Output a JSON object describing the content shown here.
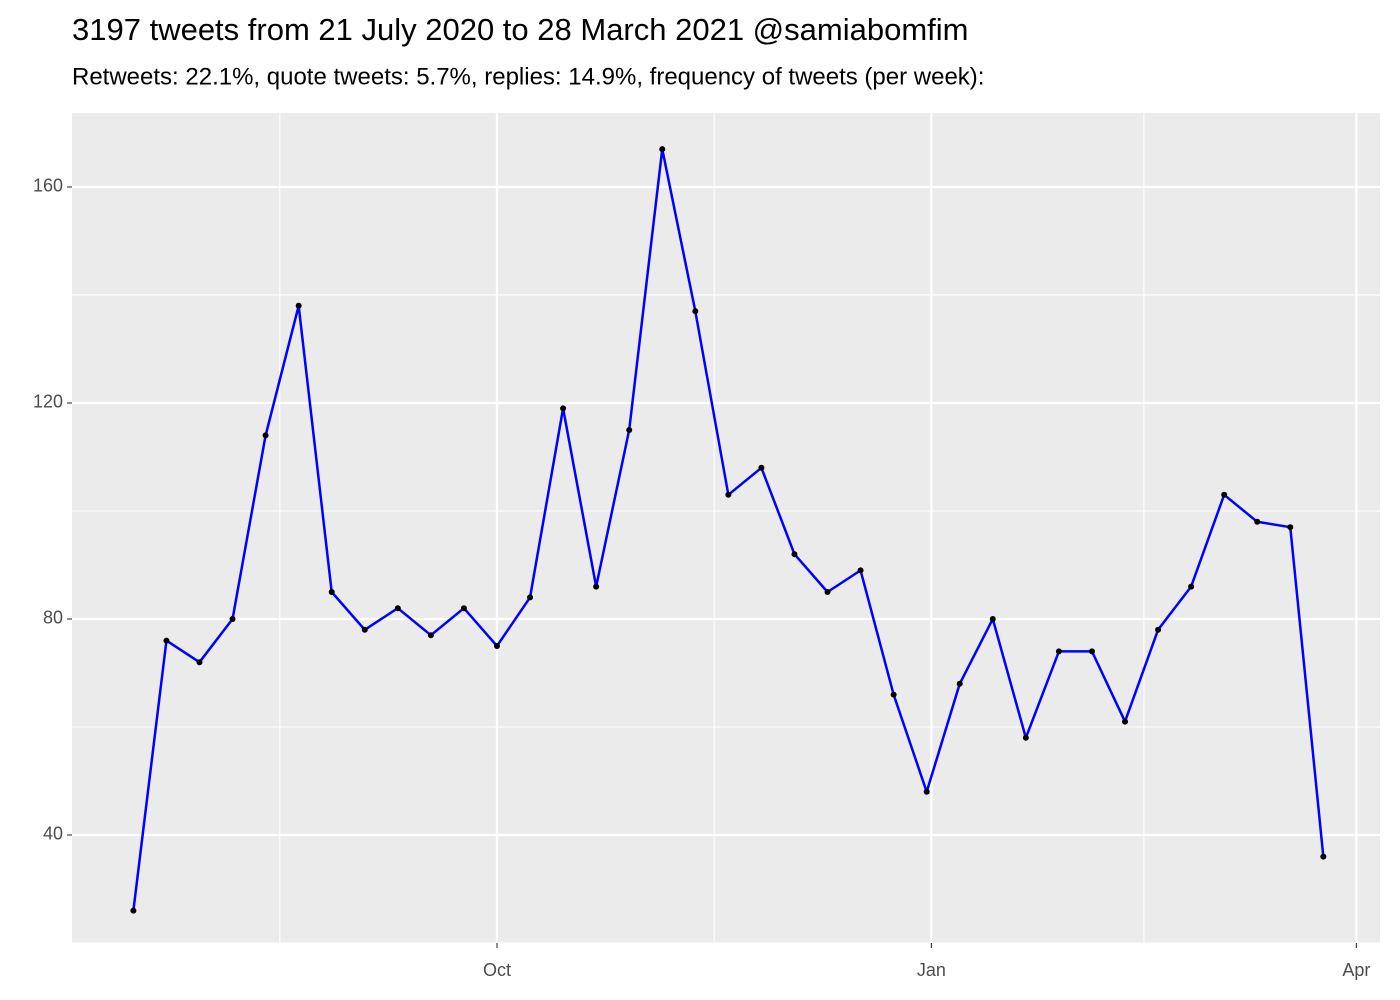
{
  "chart_data": {
    "type": "line",
    "title": "3197 tweets from 21 July 2020 to 28 March 2021 @samiabomfim",
    "subtitle": "Retweets: 22.1%, quote tweets: 5.7%, replies: 14.9%, frequency of tweets (per week):",
    "x": [
      "2020-07-16",
      "2020-07-23",
      "2020-07-30",
      "2020-08-06",
      "2020-08-13",
      "2020-08-20",
      "2020-08-27",
      "2020-09-03",
      "2020-09-10",
      "2020-09-17",
      "2020-09-24",
      "2020-10-01",
      "2020-10-08",
      "2020-10-15",
      "2020-10-22",
      "2020-10-29",
      "2020-11-05",
      "2020-11-12",
      "2020-11-19",
      "2020-11-26",
      "2020-12-03",
      "2020-12-10",
      "2020-12-17",
      "2020-12-24",
      "2020-12-31",
      "2021-01-07",
      "2021-01-14",
      "2021-01-21",
      "2021-01-28",
      "2021-02-04",
      "2021-02-11",
      "2021-02-18",
      "2021-02-25",
      "2021-03-04",
      "2021-03-11",
      "2021-03-18",
      "2021-03-25"
    ],
    "values": [
      26,
      76,
      72,
      80,
      114,
      138,
      85,
      78,
      82,
      77,
      82,
      75,
      84,
      119,
      86,
      115,
      167,
      137,
      103,
      108,
      92,
      85,
      89,
      66,
      48,
      68,
      80,
      58,
      74,
      74,
      61,
      78,
      86,
      103,
      98,
      97,
      36
    ],
    "color": "#0000ff",
    "point_color": "#000000",
    "xlim": [
      "2020-07-03",
      "2021-04-06"
    ],
    "xticks": [
      {
        "value": "2020-10-01",
        "label": "Oct"
      },
      {
        "value": "2021-01-01",
        "label": "Jan"
      },
      {
        "value": "2021-04-01",
        "label": "Apr"
      }
    ],
    "ylim": [
      20,
      173.7
    ],
    "yticks": [
      40,
      80,
      120,
      160
    ],
    "grid": true
  }
}
